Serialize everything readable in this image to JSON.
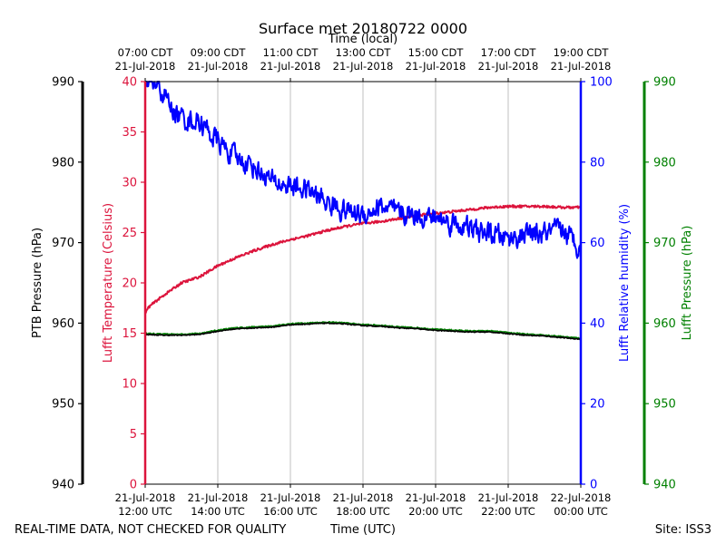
{
  "chart_data": {
    "type": "line",
    "title": "Surface met 20180722 0000",
    "top_axis_label": "Time (local)",
    "xlabel": "Time (UTC)",
    "footer_left": "REAL-TIME DATA, NOT CHECKED FOR QUALITY",
    "footer_right": "Site: ISS3",
    "x_range_hours_utc": [
      12,
      24
    ],
    "x_ticks": [
      {
        "hour": 12,
        "utc_date": "21-Jul-2018",
        "utc_time": "12:00 UTC",
        "local_time": "07:00 CDT",
        "local_date": "21-Jul-2018"
      },
      {
        "hour": 14,
        "utc_date": "21-Jul-2018",
        "utc_time": "14:00 UTC",
        "local_time": "09:00 CDT",
        "local_date": "21-Jul-2018"
      },
      {
        "hour": 16,
        "utc_date": "21-Jul-2018",
        "utc_time": "16:00 UTC",
        "local_time": "11:00 CDT",
        "local_date": "21-Jul-2018"
      },
      {
        "hour": 18,
        "utc_date": "21-Jul-2018",
        "utc_time": "18:00 UTC",
        "local_time": "13:00 CDT",
        "local_date": "21-Jul-2018"
      },
      {
        "hour": 20,
        "utc_date": "21-Jul-2018",
        "utc_time": "20:00 UTC",
        "local_time": "15:00 CDT",
        "local_date": "21-Jul-2018"
      },
      {
        "hour": 22,
        "utc_date": "21-Jul-2018",
        "utc_time": "22:00 UTC",
        "local_time": "17:00 CDT",
        "local_date": "21-Jul-2018"
      },
      {
        "hour": 24,
        "utc_date": "22-Jul-2018",
        "utc_time": "00:00 UTC",
        "local_time": "19:00 CDT",
        "local_date": "21-Jul-2018"
      }
    ],
    "axes": {
      "ptb_pressure": {
        "label": "PTB Pressure (hPa)",
        "range": [
          940,
          990
        ],
        "ticks": [
          940,
          950,
          960,
          970,
          980,
          990
        ],
        "color": "#000000"
      },
      "temperature": {
        "label": "Lufft Temperature (Celsius)",
        "range": [
          0,
          40
        ],
        "ticks": [
          0,
          5,
          10,
          15,
          20,
          25,
          30,
          35,
          40
        ],
        "color": "#dc143c"
      },
      "humidity": {
        "label": "Lufft Relative humidity (%)",
        "range": [
          0,
          100
        ],
        "ticks": [
          0,
          20,
          40,
          60,
          80,
          100
        ],
        "color": "#0000ff"
      },
      "lufft_pressure": {
        "label": "Lufft Pressure (hPa)",
        "range": [
          940,
          990
        ],
        "ticks": [
          940,
          950,
          960,
          970,
          980,
          990
        ],
        "color": "#008000"
      }
    },
    "series": [
      {
        "name": "Lufft Temperature",
        "axis": "temperature",
        "color": "#dc143c",
        "noise": 0.12,
        "x": [
          12.0,
          12.1,
          12.3,
          12.6,
          13.0,
          13.5,
          14.0,
          14.5,
          15.0,
          15.5,
          16.0,
          16.5,
          17.0,
          17.5,
          18.0,
          18.5,
          19.0,
          19.5,
          20.0,
          20.5,
          21.0,
          21.5,
          22.0,
          22.5,
          23.0,
          23.5,
          24.0
        ],
        "y": [
          17.0,
          17.6,
          18.2,
          19.0,
          20.0,
          20.6,
          21.7,
          22.5,
          23.2,
          23.8,
          24.3,
          24.7,
          25.2,
          25.6,
          25.9,
          26.1,
          26.4,
          26.7,
          26.9,
          27.1,
          27.3,
          27.5,
          27.6,
          27.6,
          27.6,
          27.5,
          27.5
        ]
      },
      {
        "name": "Lufft Relative humidity",
        "axis": "humidity",
        "color": "#0000ff",
        "noise": 1.4,
        "x": [
          12.0,
          12.25,
          12.5,
          12.75,
          13.0,
          13.5,
          14.0,
          14.5,
          15.0,
          15.5,
          16.0,
          16.5,
          17.0,
          17.5,
          18.0,
          18.5,
          19.0,
          19.5,
          20.0,
          20.5,
          21.0,
          21.5,
          22.0,
          22.5,
          23.0,
          23.5,
          24.0
        ],
        "y": [
          100,
          99,
          97,
          93,
          91,
          90,
          85,
          81,
          79,
          75,
          74,
          73,
          70,
          68,
          67,
          69,
          67,
          67,
          66,
          65,
          63,
          62,
          61,
          62,
          62,
          63,
          59
        ]
      },
      {
        "name": "PTB Pressure",
        "axis": "ptb_pressure",
        "color": "#000000",
        "noise": 0.06,
        "x": [
          12.0,
          12.5,
          13.0,
          13.5,
          14.0,
          14.5,
          15.0,
          15.5,
          16.0,
          16.5,
          17.0,
          17.5,
          18.0,
          18.5,
          19.0,
          19.5,
          20.0,
          20.5,
          21.0,
          21.5,
          22.0,
          22.5,
          23.0,
          23.5,
          24.0
        ],
        "y": [
          958.6,
          958.5,
          958.5,
          958.6,
          959.0,
          959.3,
          959.4,
          959.5,
          959.8,
          959.9,
          960.0,
          959.9,
          959.7,
          959.6,
          959.4,
          959.3,
          959.1,
          959.0,
          958.9,
          958.9,
          958.7,
          958.5,
          958.4,
          958.2,
          958.0
        ]
      },
      {
        "name": "Lufft Pressure",
        "axis": "lufft_pressure",
        "color": "#008000",
        "noise": 0.08,
        "x": [
          12.0,
          12.5,
          13.0,
          13.5,
          14.0,
          14.5,
          15.0,
          15.5,
          16.0,
          16.5,
          17.0,
          17.5,
          18.0,
          18.5,
          19.0,
          19.5,
          20.0,
          20.5,
          21.0,
          21.5,
          22.0,
          22.5,
          23.0,
          23.5,
          24.0
        ],
        "y": [
          958.7,
          958.6,
          958.6,
          958.7,
          959.1,
          959.4,
          959.5,
          959.6,
          959.9,
          960.0,
          960.1,
          960.0,
          959.8,
          959.7,
          959.5,
          959.4,
          959.2,
          959.1,
          959.0,
          959.0,
          958.8,
          958.6,
          958.5,
          958.3,
          958.1
        ]
      }
    ]
  }
}
